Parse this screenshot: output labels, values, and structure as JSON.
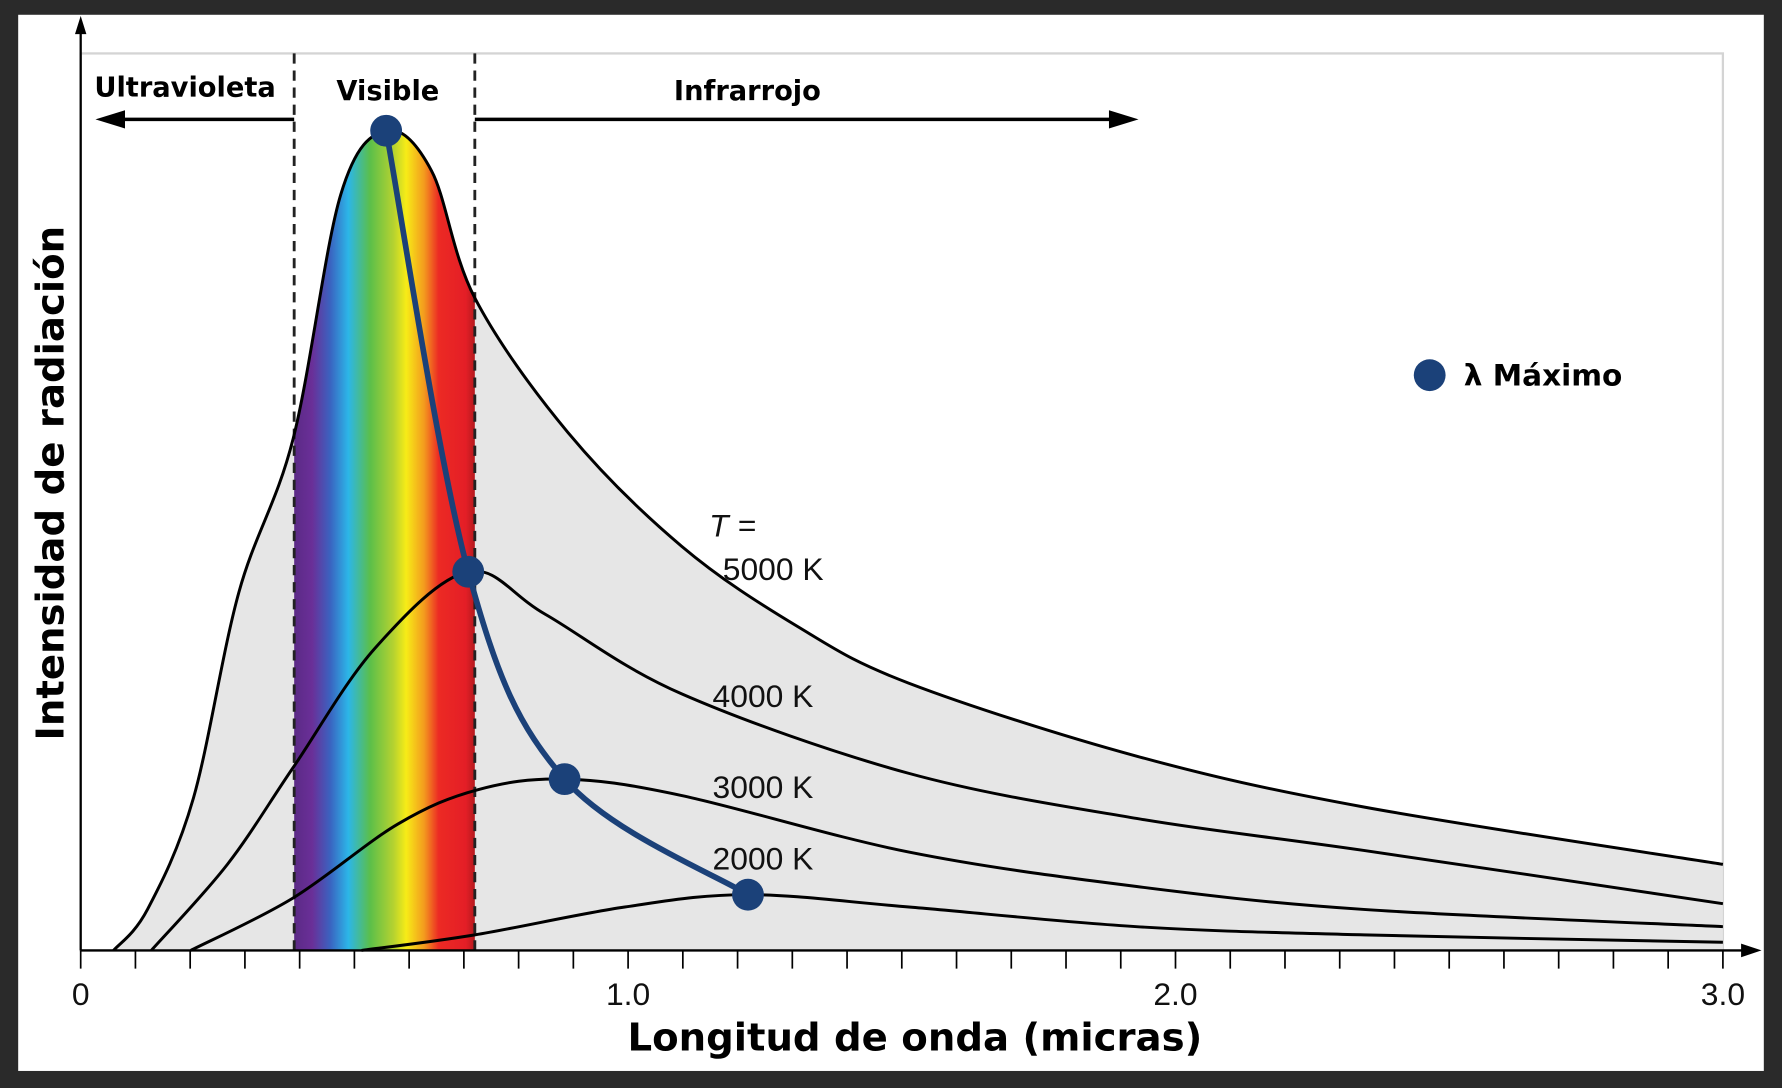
{
  "chart_data": {
    "type": "line",
    "title": "",
    "xlabel": "Longitud de onda (micras)",
    "ylabel": "Intensidad de radiación",
    "xlim": [
      0,
      3.0
    ],
    "ylim": [
      0,
      100
    ],
    "x_ticks": [
      {
        "value": 0,
        "label": "0"
      },
      {
        "value": 1.0,
        "label": "1.0"
      },
      {
        "value": 2.0,
        "label": "2.0"
      },
      {
        "value": 3.0,
        "label": "3.0"
      }
    ],
    "minor_tick_step": 0.1,
    "grid": false,
    "regions": [
      {
        "name": "Ultravioleta",
        "from": 0,
        "to": 0.39
      },
      {
        "name": "Visible",
        "from": 0.39,
        "to": 0.72
      },
      {
        "name": "Infrarrojo",
        "from": 0.72,
        "to": 1.92
      }
    ],
    "temperature_prefix": "T =",
    "series": [
      {
        "name": "5000 K",
        "x": [
          0.06,
          0.122,
          0.206,
          0.289,
          0.388,
          0.475,
          0.558,
          0.641,
          0.72,
          0.89,
          1.098,
          1.31,
          1.513,
          1.929,
          2.344,
          3.0
        ],
        "y": [
          0,
          5,
          18.6,
          43.7,
          62.4,
          92.2,
          100,
          95.1,
          79.6,
          63.2,
          49.3,
          39.5,
          32.6,
          23.7,
          17.5,
          10.5
        ]
      },
      {
        "name": "4000 K",
        "x": [
          0.129,
          0.268,
          0.388,
          0.538,
          0.708,
          0.849,
          1.098,
          1.513,
          1.929,
          2.344,
          3.0
        ],
        "y": [
          0,
          10.5,
          22.3,
          36.9,
          46.2,
          41.0,
          31.3,
          21.6,
          16.1,
          12.2,
          5.7
        ]
      },
      {
        "name": "3000 K",
        "x": [
          0.201,
          0.388,
          0.579,
          0.725,
          0.884,
          1.098,
          1.513,
          1.929,
          2.344,
          3.0
        ],
        "y": [
          0,
          6.4,
          15.4,
          19.6,
          20.9,
          18.9,
          12.0,
          7.8,
          5.0,
          2.9
        ]
      },
      {
        "name": "2000 K",
        "x": [
          0.513,
          0.72,
          0.994,
          1.219,
          1.513,
          1.929,
          2.344,
          3.0
        ],
        "y": [
          0,
          1.9,
          5.3,
          6.8,
          5.3,
          2.9,
          1.9,
          1.0
        ]
      }
    ],
    "maxima": {
      "name": "λ Máximo",
      "x": [
        0.558,
        0.708,
        0.884,
        1.219
      ],
      "y": [
        100,
        46.2,
        20.9,
        6.8
      ]
    },
    "legend": {
      "position": "right",
      "label": "λ Máximo"
    },
    "colors": {
      "maxima": "#1b4179",
      "fill": "#e6e6e6",
      "curve": "#000000"
    }
  }
}
